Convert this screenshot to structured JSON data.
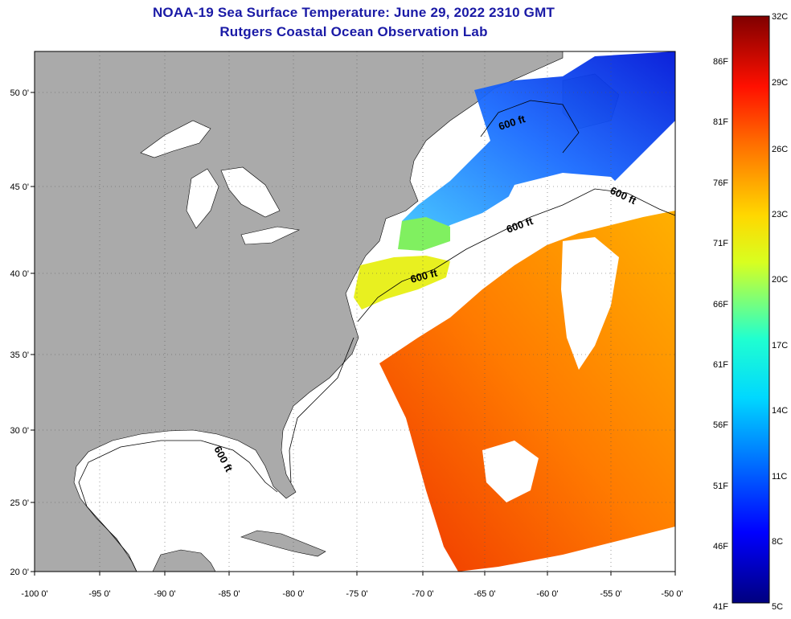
{
  "header": {
    "title": "NOAA-19 Sea Surface Temperature:  June 29, 2022 2310 GMT",
    "subtitle": "Rutgers Coastal Ocean Observation Lab"
  },
  "map": {
    "lon_range": [
      -100,
      -50
    ],
    "lat_range": [
      20,
      52.5
    ],
    "lon_ticks": [
      "-100 0'",
      "-95 0'",
      "-90 0'",
      "-85 0'",
      "-80 0'",
      "-75 0'",
      "-70 0'",
      "-65 0'",
      "-60 0'",
      "-55 0'",
      "-50 0'"
    ],
    "lat_ticks": [
      "20 0'",
      "25 0'",
      "30 0'",
      "35 0'",
      "40 0'",
      "45 0'",
      "50 0'"
    ],
    "contour_labels": [
      "600 ft",
      "600 ft",
      "600 ft",
      "600 ft",
      "600 ft"
    ],
    "colors": {
      "land": "#aaaaaa",
      "cloud_water": "#ffffff",
      "border": "#000000"
    }
  },
  "colorbar": {
    "min_label_f": "41F",
    "min_label_c": "5C",
    "max_label_c": "32C",
    "fahrenheit": [
      "86F",
      "81F",
      "76F",
      "71F",
      "66F",
      "61F",
      "56F",
      "51F",
      "46F"
    ],
    "celsius": [
      "29C",
      "26C",
      "23C",
      "20C",
      "17C",
      "14C",
      "11C",
      "8C"
    ]
  }
}
